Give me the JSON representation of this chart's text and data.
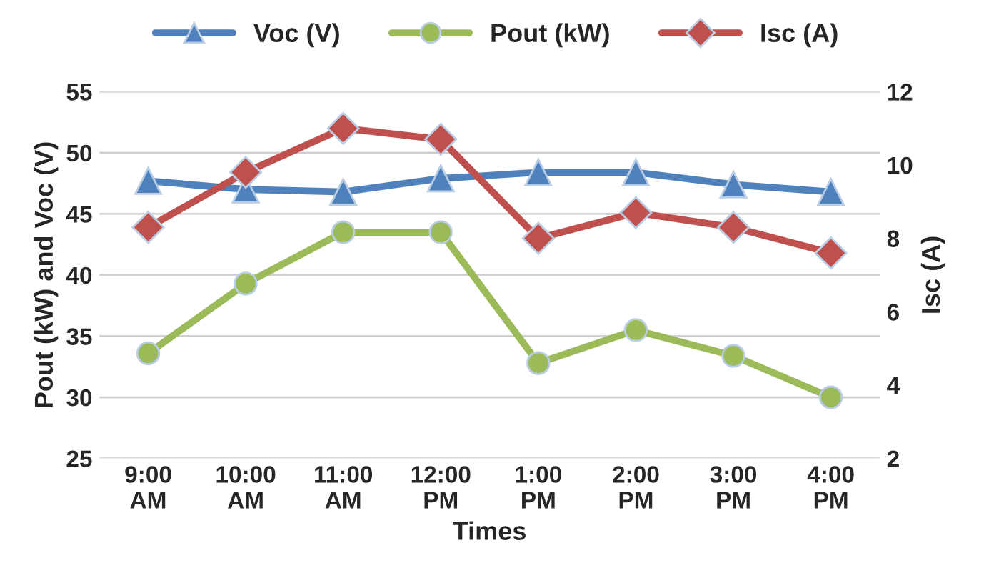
{
  "chart_data": {
    "type": "line",
    "xlabel": "Times",
    "ylabel": "Pout (kW) and Voc (V)",
    "y2label": "Isc (A)",
    "categories": [
      "9:00\nAM",
      "10:00\nAM",
      "11:00\nAM",
      "12:00\nPM",
      "1:00\nPM",
      "2:00\nPM",
      "3:00\nPM",
      "4:00\nPM"
    ],
    "series": [
      {
        "name": "Voc (V)",
        "color": "#4f81bd",
        "marker": "triangle",
        "values": [
          47.7,
          47.0,
          46.8,
          47.9,
          48.4,
          48.4,
          47.4,
          46.8
        ]
      },
      {
        "name": "Pout (kW)",
        "color": "#9bbb59",
        "marker": "circle",
        "values": [
          33.6,
          39.3,
          43.5,
          43.5,
          32.8,
          35.5,
          33.4,
          30.0
        ]
      },
      {
        "name": "Isc (A)",
        "color": "#c0504d",
        "marker": "diamond",
        "axis": "y2",
        "values": [
          8.3,
          9.8,
          11.0,
          10.7,
          8.0,
          8.7,
          8.3,
          7.6
        ]
      }
    ],
    "ylim": [
      25,
      55
    ],
    "yticks": [
      25,
      30,
      35,
      40,
      45,
      50,
      55
    ],
    "y2lim": [
      2,
      12
    ],
    "y2ticks": [
      2,
      4,
      6,
      8,
      10,
      12
    ],
    "grid": "y",
    "legend": "top"
  }
}
